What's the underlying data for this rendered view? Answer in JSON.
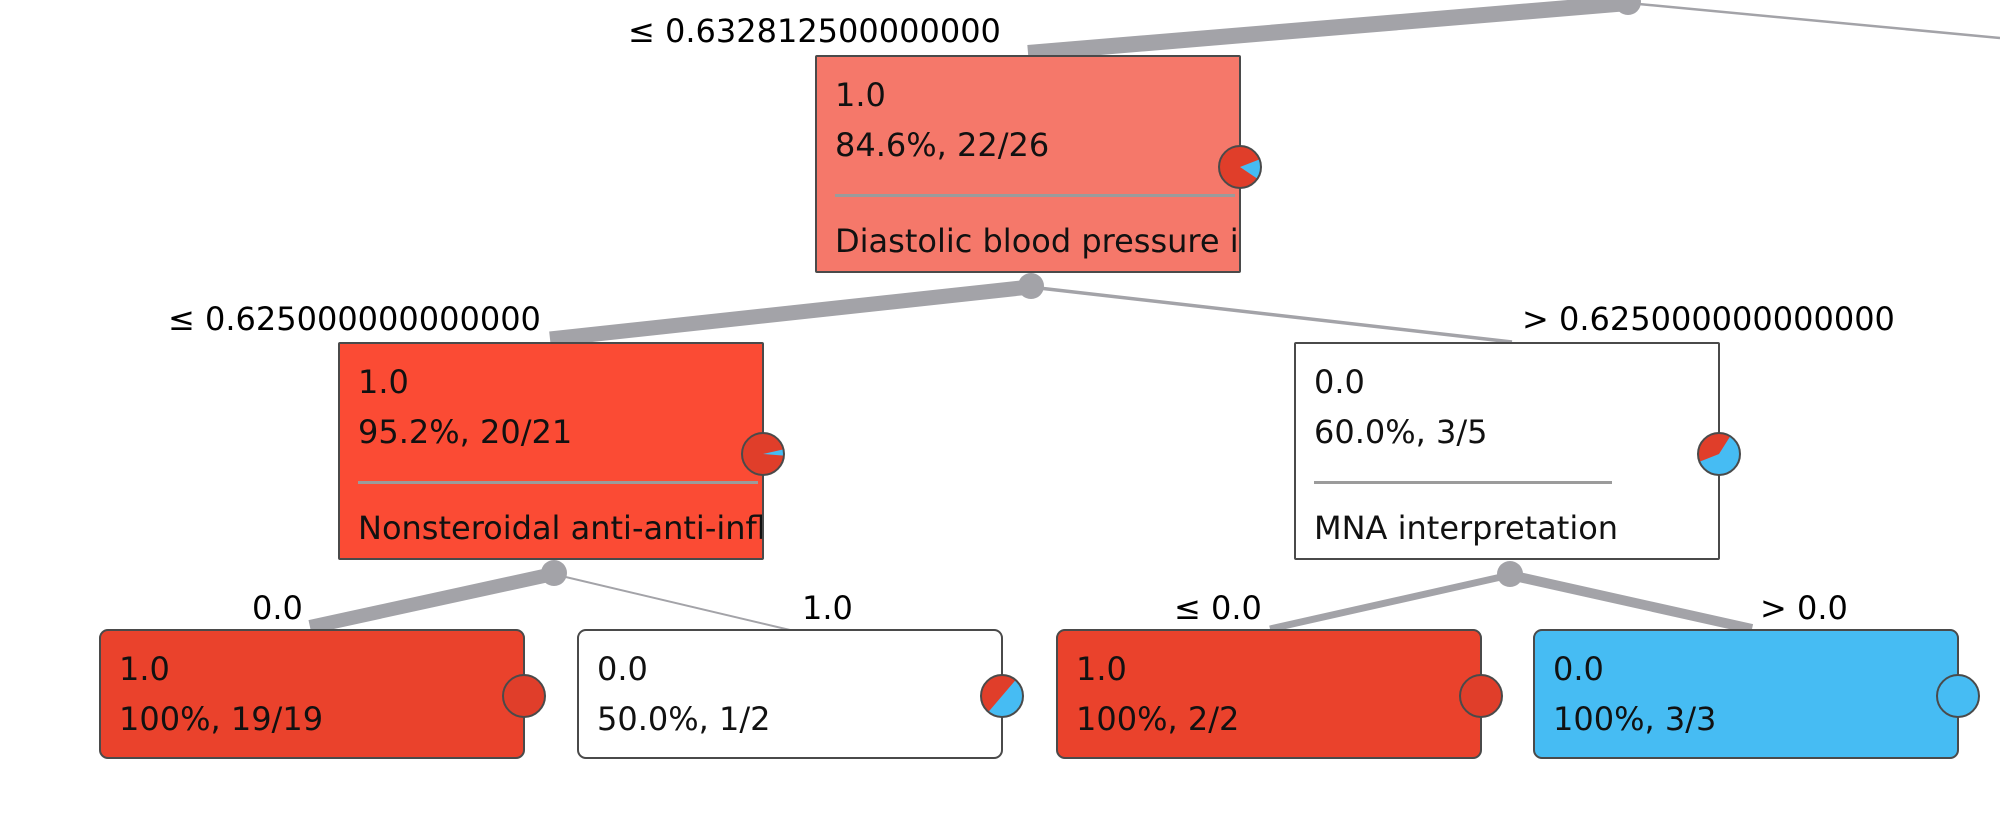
{
  "colors": {
    "edge": "#a3a3a8",
    "class_red": "#e03e2a",
    "class_blue": "#46bcf3",
    "node_border": "#4a4a4a"
  },
  "edge_labels": {
    "root_left": "≤ 0.632812500000000",
    "n1_left": "≤ 0.625000000000000",
    "n1_right": "> 0.625000000000000",
    "n2_left": "0.0",
    "n2_right": "1.0",
    "n3_left": "≤ 0.0",
    "n3_right": "> 0.0"
  },
  "nodes": {
    "n1": {
      "class_label": "1.0",
      "stats": "84.6%, 22/26",
      "split_attribute": "Diastolic blood pressure in",
      "fill": "#f5786a",
      "distribution": [
        22,
        4
      ]
    },
    "n2": {
      "class_label": "1.0",
      "stats": "95.2%, 20/21",
      "split_attribute": "Nonsteroidal anti-anti-inflamm",
      "fill": "#fb4b34",
      "distribution": [
        20,
        1
      ]
    },
    "n3": {
      "class_label": "0.0",
      "stats": "60.0%, 3/5",
      "split_attribute": "MNA interpretation",
      "fill": "#ffffff",
      "distribution": [
        2,
        3
      ]
    },
    "l1": {
      "class_label": "1.0",
      "stats": "100%, 19/19",
      "fill": "#ea422c",
      "distribution": [
        19,
        0
      ]
    },
    "l2": {
      "class_label": "0.0",
      "stats": "50.0%, 1/2",
      "fill": "#ffffff",
      "distribution": [
        1,
        1
      ]
    },
    "l3": {
      "class_label": "1.0",
      "stats": "100%, 2/2",
      "fill": "#ea422c",
      "distribution": [
        2,
        0
      ]
    },
    "l4": {
      "class_label": "0.0",
      "stats": "100%, 3/3",
      "fill": "#46bcf3",
      "distribution": [
        0,
        3
      ]
    }
  }
}
